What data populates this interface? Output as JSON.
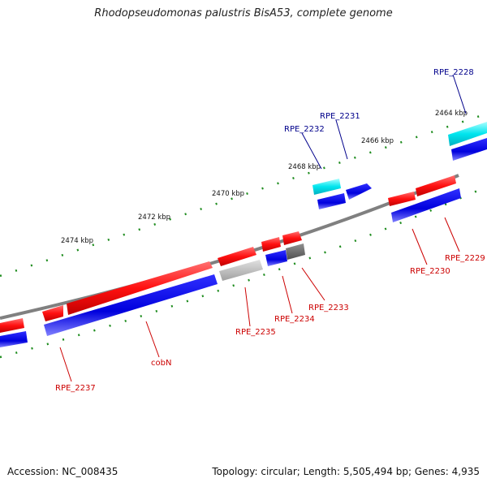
{
  "title": "Rhodopseudomonas palustris BisA53, complete genome",
  "footer": {
    "accession": "Accession: NC_008435",
    "summary": "Topology: circular; Length: 5,505,494 bp; Genes: 4,935"
  },
  "scale_labels": [
    "2464 kbp",
    "2466 kbp",
    "2468 kbp",
    "2470 kbp",
    "2472 kbp",
    "2474 kbp"
  ],
  "gene_labels": {
    "forward": [
      "RPE_2228",
      "RPE_2231",
      "RPE_2232"
    ],
    "reverse": [
      "RPE_2229",
      "RPE_2230",
      "RPE_2233",
      "RPE_2234",
      "RPE_2235",
      "cobN",
      "RPE_2237"
    ]
  },
  "colors": {
    "forward_label": "#00008b",
    "reverse_label": "#cc0000",
    "gene_red": "#ff1a1a",
    "gene_blue": "#0a0ae0",
    "gene_cyan": "#00e5ee",
    "gene_gray": "#b8b8b8",
    "gene_darkgray": "#707070",
    "backbone": "#808080",
    "ticks": "#1e8c1e"
  }
}
